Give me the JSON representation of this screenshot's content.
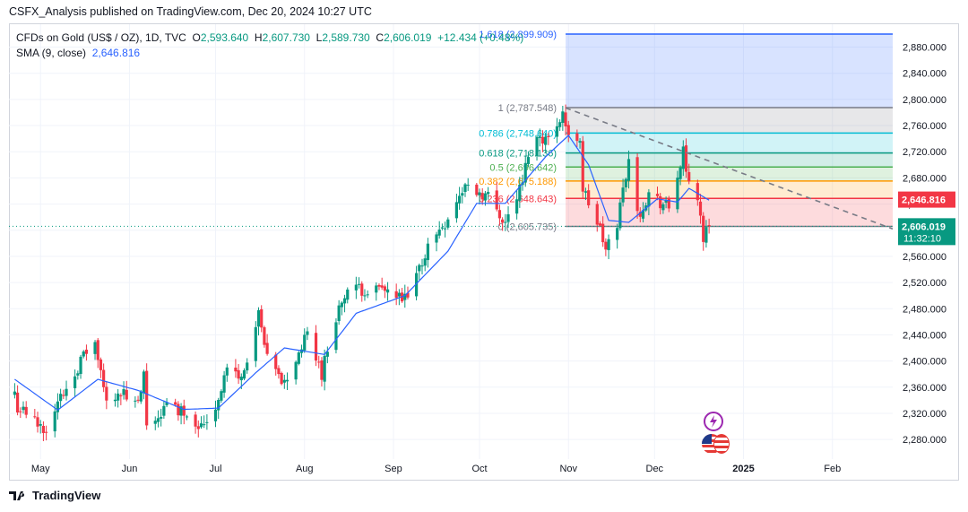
{
  "header": {
    "published": "CSFX_Analysis published on TradingView.com, Dec 20, 2024 10:27 UTC"
  },
  "legend": {
    "symbol": "CFDs on Gold (US$ / OZ), 1D, TVC",
    "o_label": "O",
    "o_value": "2,593.640",
    "h_label": "H",
    "h_value": "2,607.730",
    "l_label": "L",
    "l_value": "2,589.730",
    "c_label": "C",
    "c_value": "2,606.019",
    "change": "+12.434 (+0.48%)",
    "sma_label": "SMA (9, close)",
    "sma_value": "2,646.816"
  },
  "footer": {
    "brand": "TradingView"
  },
  "colors": {
    "up": "#089981",
    "down": "#f23645",
    "sma": "#2962ff",
    "fib_1618": "#2962ff",
    "fib_1": "#787b86",
    "fib_0786": "#00bcd4",
    "fib_0618": "#089981",
    "fib_05": "#4caf50",
    "fib_0382": "#ff9800",
    "fib_0236": "#f23645",
    "fib_0": "#787b86"
  },
  "chart_data": {
    "type": "candlestick",
    "ylim": [
      2250,
      2915
    ],
    "y_ticks": [
      "2,280.000",
      "2,320.000",
      "2,360.000",
      "2,400.000",
      "2,440.000",
      "2,480.000",
      "2,520.000",
      "2,560.000",
      "2,600.000",
      "2,640.000",
      "2,680.000",
      "2,720.000",
      "2,760.000",
      "2,800.000",
      "2,840.000",
      "2,880.000"
    ],
    "y_tick_values": [
      2280,
      2320,
      2360,
      2400,
      2440,
      2480,
      2520,
      2560,
      2600,
      2640,
      2680,
      2720,
      2760,
      2800,
      2840,
      2880
    ],
    "x_labels": [
      "May",
      "Jun",
      "Jul",
      "Aug",
      "Sep",
      "Oct",
      "Nov",
      "Dec",
      "2025",
      "Feb"
    ],
    "x_label_dates": [
      "2024-05-01",
      "2024-06-01",
      "2024-07-01",
      "2024-08-01",
      "2024-09-01",
      "2024-10-01",
      "2024-11-01",
      "2024-12-01",
      "2025-01-01",
      "2025-02-01"
    ],
    "x_range": [
      "2024-04-20",
      "2025-02-22"
    ],
    "last_price": "2,606.019",
    "last_price_value": 2606.019,
    "countdown": "11:32:10",
    "sma_price": "2,646.816",
    "sma_price_value": 2646.816,
    "fib_start_date": "2024-10-31",
    "fib_end_date": "2025-02-22",
    "fib_levels": [
      {
        "label": "1.618 (2,899.909)",
        "price": 2899.909,
        "color_key": "fib_1618"
      },
      {
        "label": "1 (2,787.548)",
        "price": 2787.548,
        "color_key": "fib_1"
      },
      {
        "label": "0.786 (2,748.640)",
        "price": 2748.64,
        "color_key": "fib_0786"
      },
      {
        "label": "0.618 (2,718.136)",
        "price": 2718.136,
        "color_key": "fib_0618"
      },
      {
        "label": "0.5 (2,696.642)",
        "price": 2696.642,
        "color_key": "fib_05"
      },
      {
        "label": "0.382 (2,675.188)",
        "price": 2675.188,
        "color_key": "fib_0382"
      },
      {
        "label": "0.236 (2,648.643)",
        "price": 2648.643,
        "color_key": "fib_0236"
      },
      {
        "label": "0 (2,605.735)",
        "price": 2605.735,
        "color_key": "fib_0"
      }
    ],
    "trendline": {
      "from": [
        "2024-10-31",
        2787
      ],
      "to": [
        "2025-02-22",
        2602
      ]
    },
    "anchors": [
      {
        "date": "2024-04-20",
        "price": 2390
      },
      {
        "date": "2024-04-23",
        "price": 2330
      },
      {
        "date": "2024-05-01",
        "price": 2300
      },
      {
        "date": "2024-05-03",
        "price": 2300
      },
      {
        "date": "2024-05-10",
        "price": 2360
      },
      {
        "date": "2024-05-17",
        "price": 2415
      },
      {
        "date": "2024-05-20",
        "price": 2425
      },
      {
        "date": "2024-05-24",
        "price": 2335
      },
      {
        "date": "2024-05-28",
        "price": 2355
      },
      {
        "date": "2024-06-04",
        "price": 2330
      },
      {
        "date": "2024-06-06",
        "price": 2375
      },
      {
        "date": "2024-06-07",
        "price": 2295
      },
      {
        "date": "2024-06-14",
        "price": 2332
      },
      {
        "date": "2024-06-21",
        "price": 2322
      },
      {
        "date": "2024-06-26",
        "price": 2300
      },
      {
        "date": "2024-07-01",
        "price": 2330
      },
      {
        "date": "2024-07-05",
        "price": 2390
      },
      {
        "date": "2024-07-10",
        "price": 2372
      },
      {
        "date": "2024-07-16",
        "price": 2468
      },
      {
        "date": "2024-07-19",
        "price": 2400
      },
      {
        "date": "2024-07-25",
        "price": 2365
      },
      {
        "date": "2024-08-02",
        "price": 2440
      },
      {
        "date": "2024-08-07",
        "price": 2382
      },
      {
        "date": "2024-08-12",
        "price": 2470
      },
      {
        "date": "2024-08-16",
        "price": 2507
      },
      {
        "date": "2024-08-23",
        "price": 2510
      },
      {
        "date": "2024-08-30",
        "price": 2505
      },
      {
        "date": "2024-09-04",
        "price": 2492
      },
      {
        "date": "2024-09-06",
        "price": 2495
      },
      {
        "date": "2024-09-13",
        "price": 2575
      },
      {
        "date": "2024-09-20",
        "price": 2620
      },
      {
        "date": "2024-09-26",
        "price": 2668
      },
      {
        "date": "2024-10-04",
        "price": 2652
      },
      {
        "date": "2024-10-10",
        "price": 2612
      },
      {
        "date": "2024-10-16",
        "price": 2672
      },
      {
        "date": "2024-10-18",
        "price": 2720
      },
      {
        "date": "2024-10-22",
        "price": 2745
      },
      {
        "date": "2024-10-25",
        "price": 2737
      },
      {
        "date": "2024-10-30",
        "price": 2782
      },
      {
        "date": "2024-11-01",
        "price": 2738
      },
      {
        "date": "2024-11-05",
        "price": 2742
      },
      {
        "date": "2024-11-06",
        "price": 2662
      },
      {
        "date": "2024-11-12",
        "price": 2600
      },
      {
        "date": "2024-11-14",
        "price": 2567
      },
      {
        "date": "2024-11-18",
        "price": 2612
      },
      {
        "date": "2024-11-22",
        "price": 2712
      },
      {
        "date": "2024-11-25",
        "price": 2622
      },
      {
        "date": "2024-11-29",
        "price": 2655
      },
      {
        "date": "2024-12-06",
        "price": 2633
      },
      {
        "date": "2024-12-11",
        "price": 2717
      },
      {
        "date": "2024-12-12",
        "price": 2682
      },
      {
        "date": "2024-12-16",
        "price": 2652
      },
      {
        "date": "2024-12-18",
        "price": 2588
      },
      {
        "date": "2024-12-20",
        "price": 2606
      }
    ],
    "sma_anchors": [
      {
        "date": "2024-04-22",
        "price": 2372
      },
      {
        "date": "2024-05-07",
        "price": 2325
      },
      {
        "date": "2024-05-21",
        "price": 2372
      },
      {
        "date": "2024-06-04",
        "price": 2355
      },
      {
        "date": "2024-06-20",
        "price": 2326
      },
      {
        "date": "2024-07-02",
        "price": 2328
      },
      {
        "date": "2024-07-15",
        "price": 2382
      },
      {
        "date": "2024-07-25",
        "price": 2420
      },
      {
        "date": "2024-08-08",
        "price": 2410
      },
      {
        "date": "2024-08-19",
        "price": 2473
      },
      {
        "date": "2024-09-05",
        "price": 2500
      },
      {
        "date": "2024-09-20",
        "price": 2568
      },
      {
        "date": "2024-09-30",
        "price": 2641
      },
      {
        "date": "2024-10-10",
        "price": 2641
      },
      {
        "date": "2024-10-24",
        "price": 2712
      },
      {
        "date": "2024-11-01",
        "price": 2745
      },
      {
        "date": "2024-11-08",
        "price": 2700
      },
      {
        "date": "2024-11-15",
        "price": 2615
      },
      {
        "date": "2024-11-22",
        "price": 2612
      },
      {
        "date": "2024-12-02",
        "price": 2648
      },
      {
        "date": "2024-12-09",
        "price": 2643
      },
      {
        "date": "2024-12-13",
        "price": 2664
      },
      {
        "date": "2024-12-20",
        "price": 2646
      }
    ]
  }
}
